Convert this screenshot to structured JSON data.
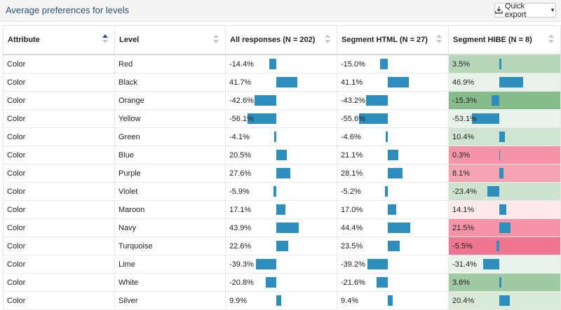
{
  "panel": {
    "title": "Average preferences for levels",
    "export_label": "Quick export"
  },
  "colors": {
    "bar": "#2e8fbf",
    "positive_strong": "#86bb8b",
    "positive_light": "#e9f2ea",
    "negative_strong": "#ef7590",
    "negative_light": "#fde8ec"
  },
  "table": {
    "columns": [
      "Attribute",
      "Level",
      "All responses (N = 202)",
      "Segment HTML (N = 27)",
      "Segment HIBE (N = 8)"
    ],
    "rows": [
      {
        "attribute": "Color",
        "level": "Red",
        "all": "-14.4%",
        "html": "-15.0%",
        "hibe": "3.5%",
        "all_v": -14.4,
        "html_v": -15.0,
        "hibe_v": 3.5,
        "shade": "#b5d6b8"
      },
      {
        "attribute": "Color",
        "level": "Black",
        "all": "41.7%",
        "html": "41.1%",
        "hibe": "46.9%",
        "all_v": 41.7,
        "html_v": 41.1,
        "hibe_v": 46.9,
        "shade": "#e9f2ea"
      },
      {
        "attribute": "Color",
        "level": "Orange",
        "all": "-42.6%",
        "html": "-43.2%",
        "hibe": "-15.3%",
        "all_v": -42.6,
        "html_v": -43.2,
        "hibe_v": -15.3,
        "shade": "#86bb8b"
      },
      {
        "attribute": "Color",
        "level": "Yellow",
        "all": "-56.1%",
        "html": "-55.6%",
        "hibe": "-53.1%",
        "all_v": -56.1,
        "html_v": -55.6,
        "hibe_v": -53.1,
        "shade": "#eaf3eb"
      },
      {
        "attribute": "Color",
        "level": "Green",
        "all": "-4.1%",
        "html": "-4.6%",
        "hibe": "10.4%",
        "all_v": -4.1,
        "html_v": -4.6,
        "hibe_v": 10.4,
        "shade": "#cfe5d1"
      },
      {
        "attribute": "Color",
        "level": "Blue",
        "all": "20.5%",
        "html": "21.1%",
        "hibe": "0.3%",
        "all_v": 20.5,
        "html_v": 21.1,
        "hibe_v": 0.3,
        "shade": "#f594a8"
      },
      {
        "attribute": "Color",
        "level": "Purple",
        "all": "27.6%",
        "html": "28.1%",
        "hibe": "8.1%",
        "all_v": 27.6,
        "html_v": 28.1,
        "hibe_v": 8.1,
        "shade": "#f6a3b3"
      },
      {
        "attribute": "Color",
        "level": "Violet",
        "all": "-5.9%",
        "html": "-5.2%",
        "hibe": "-23.4%",
        "all_v": -5.9,
        "html_v": -5.2,
        "hibe_v": -23.4,
        "shade": "#cde3cf"
      },
      {
        "attribute": "Color",
        "level": "Maroon",
        "all": "17.1%",
        "html": "17.0%",
        "hibe": "14.1%",
        "all_v": 17.1,
        "html_v": 17.0,
        "hibe_v": 14.1,
        "shade": "#fde8ec"
      },
      {
        "attribute": "Color",
        "level": "Navy",
        "all": "43.9%",
        "html": "44.4%",
        "hibe": "21.5%",
        "all_v": 43.9,
        "html_v": 44.4,
        "hibe_v": 21.5,
        "shade": "#f594a8"
      },
      {
        "attribute": "Color",
        "level": "Turquoise",
        "all": "22.6%",
        "html": "23.5%",
        "hibe": "-5.5%",
        "all_v": 22.6,
        "html_v": 23.5,
        "hibe_v": -5.5,
        "shade": "#ef7590"
      },
      {
        "attribute": "Color",
        "level": "Lime",
        "all": "-39.3%",
        "html": "-39.2%",
        "hibe": "-31.4%",
        "all_v": -39.3,
        "html_v": -39.2,
        "hibe_v": -31.4,
        "shade": "#e9f2ea"
      },
      {
        "attribute": "Color",
        "level": "White",
        "all": "-20.8%",
        "html": "-21.6%",
        "hibe": "3.6%",
        "all_v": -20.8,
        "html_v": -21.6,
        "hibe_v": 3.6,
        "shade": "#9fca a3"
      },
      {
        "attribute": "Color",
        "level": "Silver",
        "all": "9.9%",
        "html": "9.4%",
        "hibe": "20.4%",
        "all_v": 9.9,
        "html_v": 9.4,
        "hibe_v": 20.4,
        "shade": "#d9ead9"
      }
    ]
  }
}
